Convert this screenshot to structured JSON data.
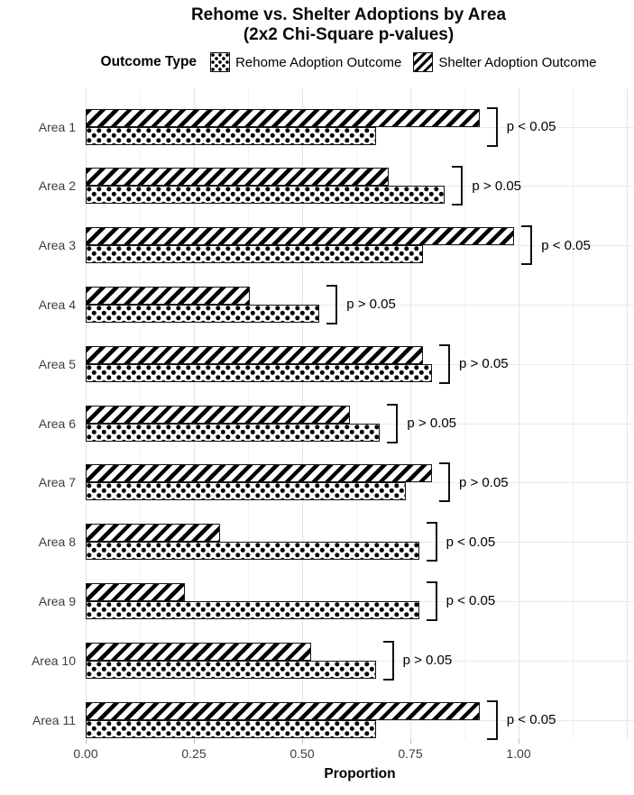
{
  "title": {
    "line1": "Rehome vs. Shelter Adoptions by Area",
    "line2": "(2x2 Chi-Square p-values)"
  },
  "legend": {
    "title": "Outcome Type",
    "items": [
      {
        "name": "Rehome Adoption Outcome",
        "pattern": "dots"
      },
      {
        "name": "Shelter Adoption Outcome",
        "pattern": "stripes"
      }
    ]
  },
  "axis": {
    "x_label": "Proportion",
    "x_ticks": [
      "0.00",
      "0.25",
      "0.50",
      "0.75",
      "1.00"
    ],
    "x_tick_values": [
      0,
      0.25,
      0.5,
      0.75,
      1
    ],
    "x_range": [
      0,
      1.25
    ]
  },
  "chart_data": {
    "type": "bar",
    "orientation": "horizontal",
    "title": "Rehome vs. Shelter Adoptions by Area (2x2 Chi-Square p-values)",
    "xlabel": "Proportion",
    "ylabel": "",
    "xlim": [
      0,
      1.25
    ],
    "grid": true,
    "legend_position": "top",
    "categories": [
      "Area 1",
      "Area 2",
      "Area 3",
      "Area 4",
      "Area 5",
      "Area 6",
      "Area 7",
      "Area 8",
      "Area 9",
      "Area 10",
      "Area 11"
    ],
    "series": [
      {
        "name": "Rehome Adoption Outcome",
        "pattern": "dots",
        "values": [
          0.67,
          0.83,
          0.78,
          0.54,
          0.8,
          0.68,
          0.74,
          0.77,
          0.77,
          0.67,
          0.67
        ]
      },
      {
        "name": "Shelter Adoption Outcome",
        "pattern": "stripes",
        "values": [
          0.91,
          0.7,
          0.99,
          0.38,
          0.78,
          0.61,
          0.8,
          0.31,
          0.23,
          0.52,
          0.91
        ]
      }
    ],
    "p_values": [
      "p < 0.05",
      "p > 0.05",
      "p < 0.05",
      "p > 0.05",
      "p > 0.05",
      "p > 0.05",
      "p > 0.05",
      "p < 0.05",
      "p < 0.05",
      "p > 0.05",
      "p < 0.05"
    ]
  },
  "colors": {
    "pattern_fg": "#000000",
    "pattern_bg": "#ffffff",
    "bar_border": "#141414",
    "grid_major": "#e4e4e4",
    "grid_minor": "#f1f1f1",
    "axis_text": "#3d3d3d",
    "text": "#000000"
  }
}
